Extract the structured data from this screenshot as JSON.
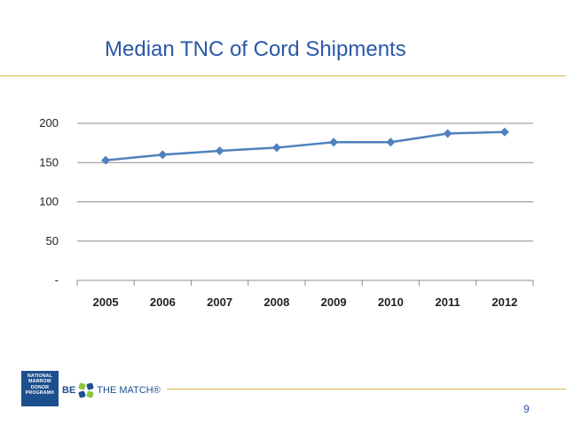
{
  "slide": {
    "title": "Median TNC of Cord Shipments",
    "page_number": "9"
  },
  "footer": {
    "nmdp_logo_lines": [
      "NATIONAL",
      "MARROW",
      "DONOR",
      "PROGRAM®"
    ],
    "btm_logo_be": "BE",
    "btm_logo_rest": "THE MATCH®"
  },
  "colors": {
    "title": "#2a58a8",
    "rule": "#d9b84a",
    "series": "#4f81bd",
    "logo": "#1c4f8e"
  },
  "chart_data": {
    "type": "line",
    "title": "",
    "xlabel": "",
    "ylabel": "",
    "categories": [
      "2005",
      "2006",
      "2007",
      "2008",
      "2009",
      "2010",
      "2011",
      "2012"
    ],
    "series": [
      {
        "values": [
          153,
          160,
          165,
          169,
          176,
          176,
          187,
          189
        ],
        "marker": "diamond"
      }
    ],
    "ylim": [
      0,
      200
    ],
    "yticks": [
      0,
      50,
      100,
      150,
      200
    ],
    "ytick_labels": [
      "-",
      "50",
      "100",
      "150",
      "200"
    ],
    "grid": true,
    "legend": "none"
  }
}
